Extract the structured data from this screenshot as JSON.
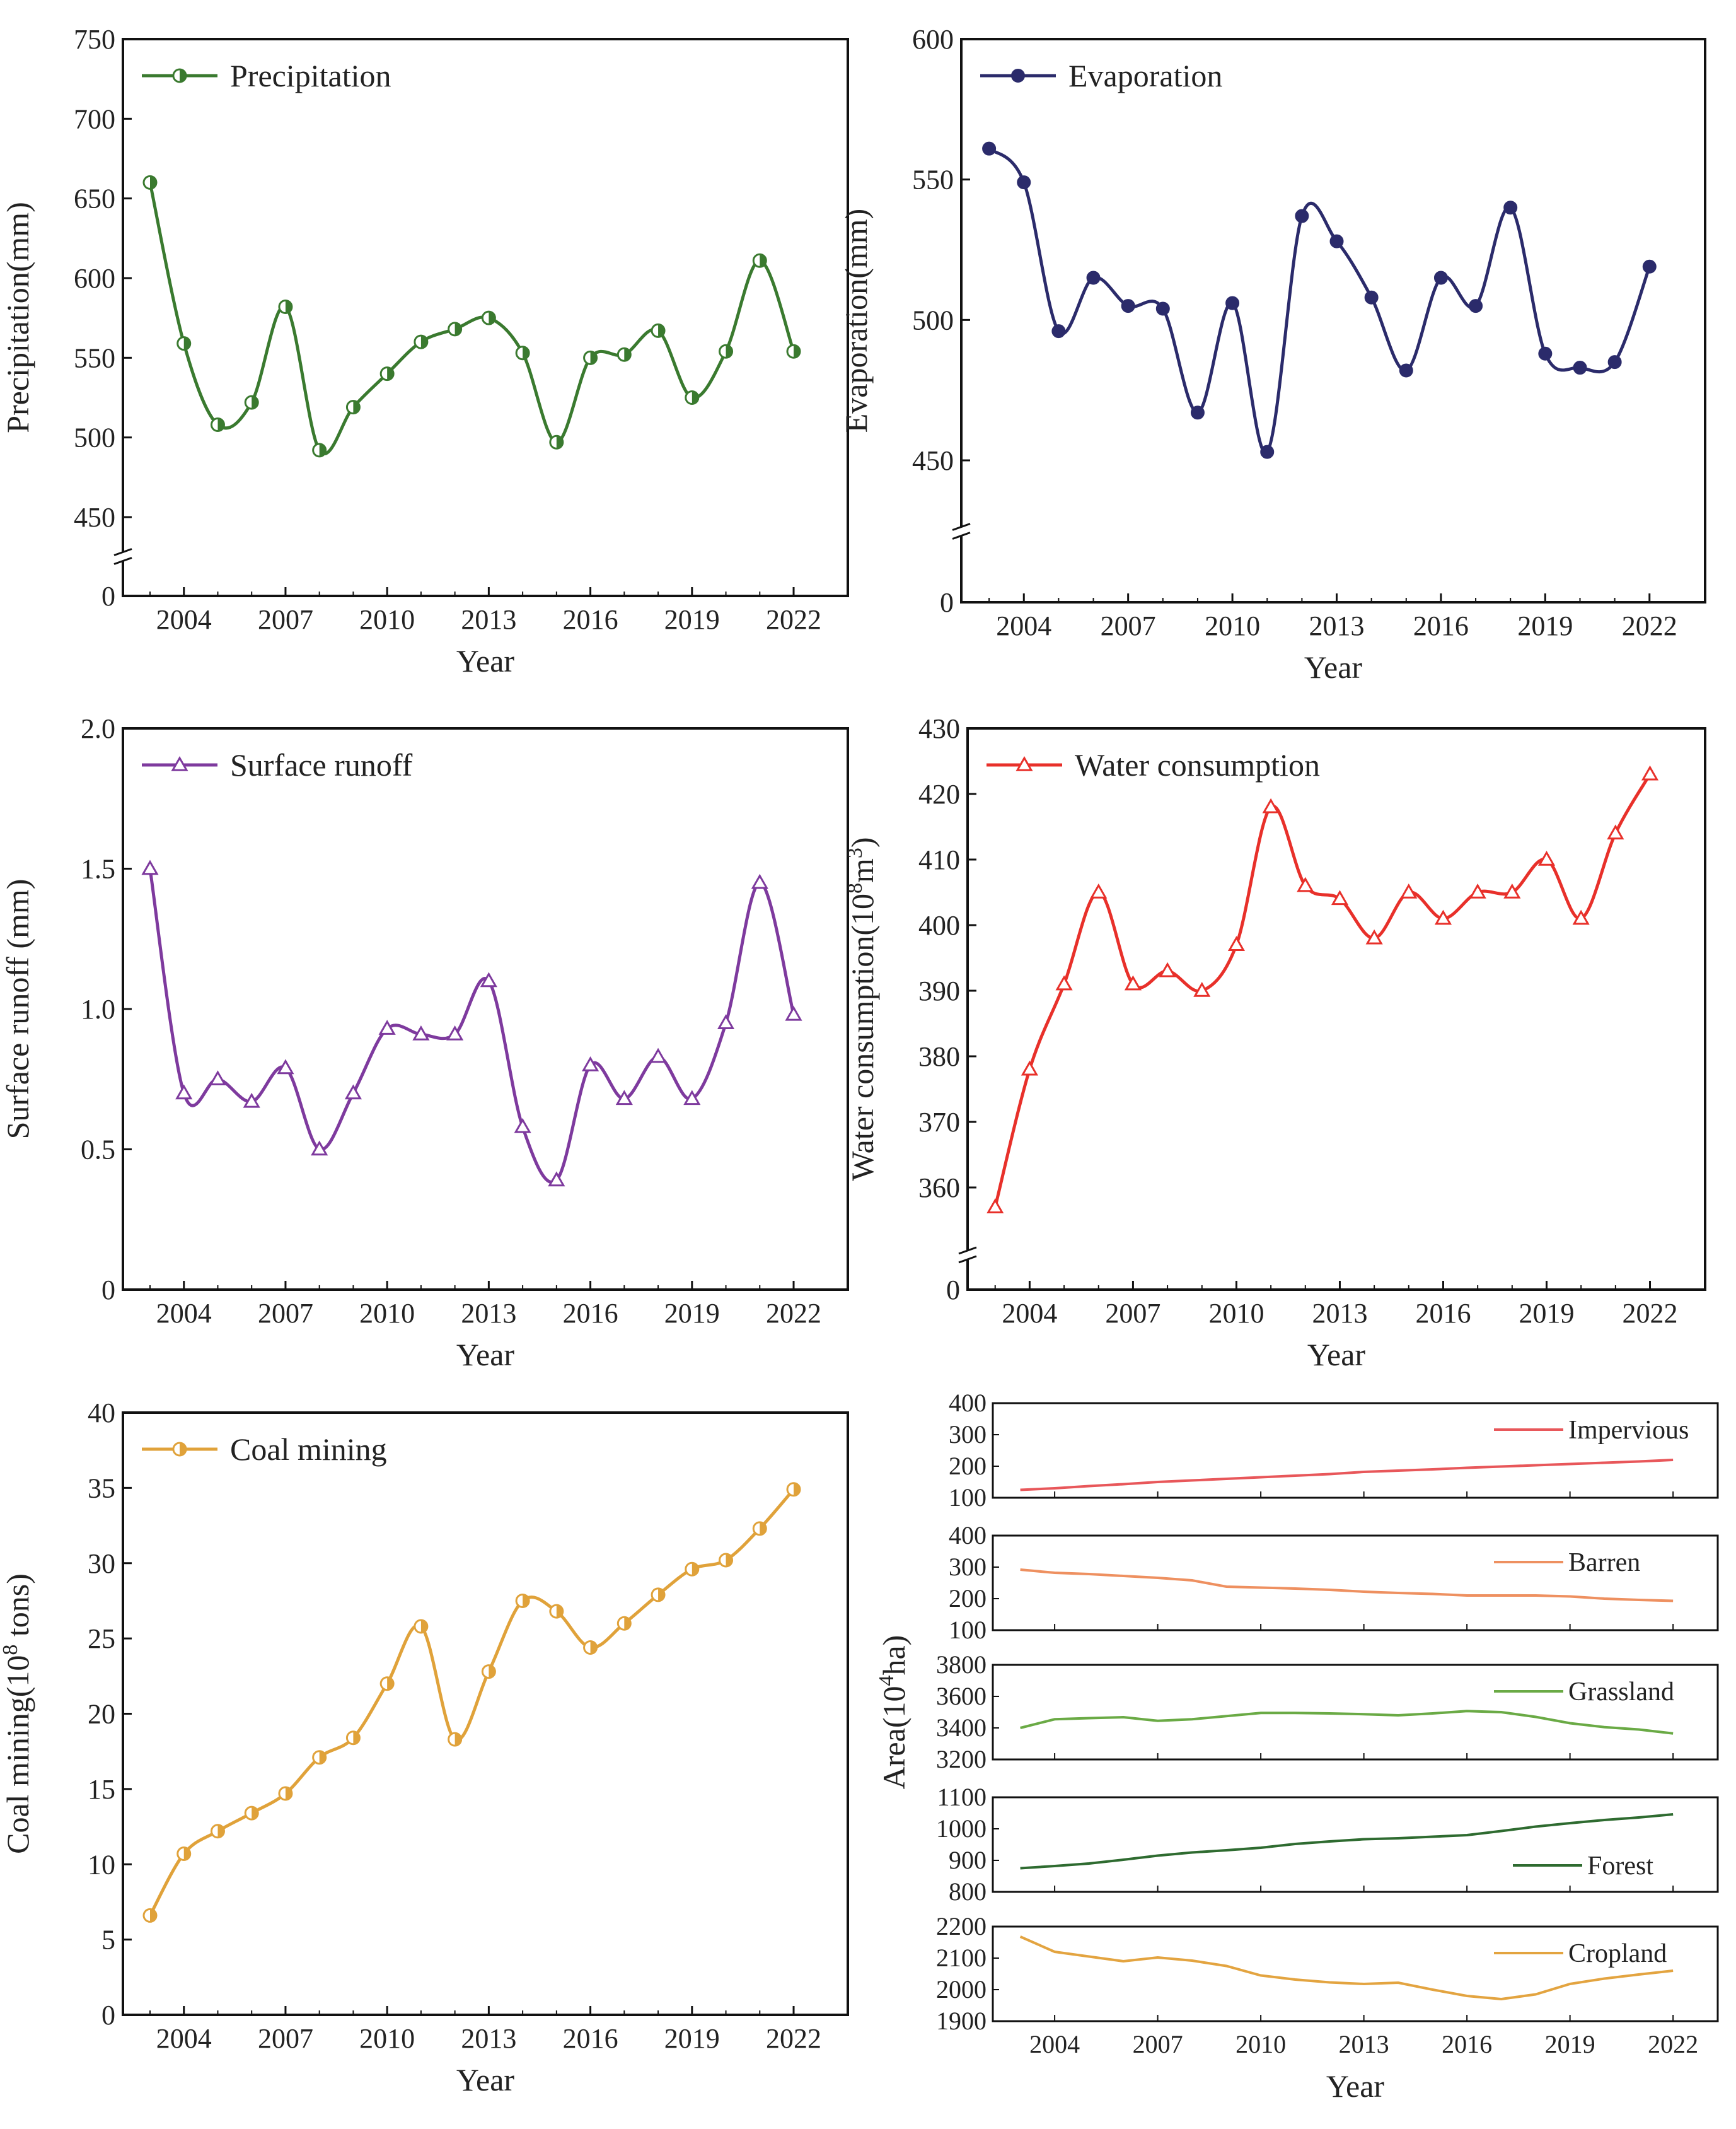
{
  "figure": {
    "title": ""
  },
  "chart_data": [
    {
      "id": "precip",
      "type": "line",
      "title": "",
      "xlabel": "Year",
      "ylabel": "Precipitation(mm)",
      "legend": "Precipitation",
      "color": "#3a7a2f",
      "marker": "circle-half",
      "axis_break": true,
      "ylim": [
        450,
        750
      ],
      "yticks": [
        "0",
        "450",
        "500",
        "550",
        "600",
        "650",
        "700",
        "750"
      ],
      "xticks": [
        "2004",
        "2007",
        "2010",
        "2013",
        "2016",
        "2019",
        "2022"
      ],
      "x": [
        2003,
        2004,
        2005,
        2006,
        2007,
        2008,
        2009,
        2010,
        2011,
        2012,
        2013,
        2014,
        2015,
        2016,
        2017,
        2018,
        2019,
        2020,
        2021,
        2022
      ],
      "values": [
        660,
        559,
        508,
        522,
        582,
        492,
        519,
        540,
        560,
        568,
        575,
        553,
        497,
        550,
        552,
        567,
        525,
        554,
        611,
        554
      ]
    },
    {
      "id": "evap",
      "type": "line",
      "title": "",
      "xlabel": "Year",
      "ylabel": "Evaporation(mm)",
      "legend": "Evaporation",
      "color": "#2b2b6b",
      "marker": "circle",
      "axis_break": true,
      "ylim": [
        450,
        600
      ],
      "yticks": [
        "0",
        "450",
        "500",
        "550",
        "600"
      ],
      "xticks": [
        "2004",
        "2007",
        "2010",
        "2013",
        "2016",
        "2019",
        "2022"
      ],
      "x": [
        2003,
        2004,
        2005,
        2006,
        2007,
        2008,
        2009,
        2010,
        2011,
        2012,
        2013,
        2014,
        2015,
        2016,
        2017,
        2018,
        2019,
        2020,
        2021,
        2022
      ],
      "values": [
        561,
        549,
        496,
        515,
        505,
        504,
        467,
        506,
        453,
        537,
        528,
        508,
        482,
        515,
        505,
        540,
        488,
        483,
        485,
        519
      ]
    },
    {
      "id": "runoff",
      "type": "line",
      "title": "",
      "xlabel": "Year",
      "ylabel": "Surface runoff (mm)",
      "legend": "Surface runoff",
      "color": "#7e3a9e",
      "marker": "triangle",
      "axis_break": false,
      "ylim": [
        0,
        2.0
      ],
      "yticks": [
        "0",
        "0.5",
        "1.0",
        "1.5",
        "2.0"
      ],
      "xticks": [
        "2004",
        "2007",
        "2010",
        "2013",
        "2016",
        "2019",
        "2022"
      ],
      "x": [
        2003,
        2004,
        2005,
        2006,
        2007,
        2008,
        2009,
        2010,
        2011,
        2012,
        2013,
        2014,
        2015,
        2016,
        2017,
        2018,
        2019,
        2020,
        2021,
        2022
      ],
      "values": [
        1.5,
        0.7,
        0.75,
        0.67,
        0.79,
        0.5,
        0.7,
        0.93,
        0.91,
        0.91,
        1.1,
        0.58,
        0.39,
        0.8,
        0.68,
        0.83,
        0.68,
        0.95,
        1.45,
        0.98
      ]
    },
    {
      "id": "water",
      "type": "line",
      "title": "",
      "xlabel": "Year",
      "ylabel_main": "Water consumption(10",
      "ylabel_sup1": "8",
      "ylabel_mid": "m",
      "ylabel_sup2": "3",
      "ylabel_end": ")",
      "legend": "Water consumption",
      "color": "#e8302a",
      "marker": "triangle",
      "axis_break": true,
      "ylim": [
        355,
        430
      ],
      "yticks": [
        "0",
        "360",
        "370",
        "380",
        "390",
        "400",
        "410",
        "420",
        "430"
      ],
      "xticks": [
        "2004",
        "2007",
        "2010",
        "2013",
        "2016",
        "2019",
        "2022"
      ],
      "x": [
        2003,
        2004,
        2005,
        2006,
        2007,
        2008,
        2009,
        2010,
        2011,
        2012,
        2013,
        2014,
        2015,
        2016,
        2017,
        2018,
        2019,
        2020,
        2021,
        2022
      ],
      "values": [
        357,
        378,
        391,
        405,
        391,
        393,
        390,
        397,
        418,
        406,
        404,
        398,
        405,
        401,
        405,
        405,
        410,
        401,
        414,
        423
      ]
    },
    {
      "id": "coal",
      "type": "line",
      "title": "",
      "xlabel": "Year",
      "ylabel_main": "Coal mining(10",
      "ylabel_sup1": "8",
      "ylabel_end": " tons)",
      "legend": "Coal mining",
      "color": "#e0a23a",
      "marker": "circle-half",
      "axis_break": false,
      "ylim": [
        0,
        40
      ],
      "yticks": [
        "0",
        "5",
        "10",
        "15",
        "20",
        "25",
        "30",
        "35",
        "40"
      ],
      "xticks": [
        "2004",
        "2007",
        "2010",
        "2013",
        "2016",
        "2019",
        "2022"
      ],
      "x": [
        2003,
        2004,
        2005,
        2006,
        2007,
        2008,
        2009,
        2010,
        2011,
        2012,
        2013,
        2014,
        2015,
        2016,
        2017,
        2018,
        2019,
        2020,
        2021,
        2022
      ],
      "values": [
        6.6,
        10.7,
        12.2,
        13.4,
        14.7,
        17.1,
        18.4,
        22.0,
        25.8,
        18.3,
        22.8,
        27.5,
        26.8,
        24.4,
        26.0,
        27.9,
        29.6,
        30.2,
        32.3,
        34.9
      ]
    },
    {
      "id": "landuse",
      "type": "line",
      "title": "",
      "xlabel": "Year",
      "ylabel_main": "Area(10",
      "ylabel_sup1": "4",
      "ylabel_end": "ha)",
      "xticks": [
        "2004",
        "2007",
        "2010",
        "2013",
        "2016",
        "2019",
        "2022"
      ],
      "x": [
        2003,
        2004,
        2005,
        2006,
        2007,
        2008,
        2009,
        2010,
        2011,
        2012,
        2013,
        2014,
        2015,
        2016,
        2017,
        2018,
        2019,
        2020,
        2021,
        2022
      ],
      "series": [
        {
          "name": "Impervious",
          "color": "#e8575a",
          "ylim": [
            100,
            400
          ],
          "yticks": [
            "100",
            "200",
            "300",
            "400"
          ],
          "values": [
            125,
            130,
            137,
            143,
            150,
            155,
            160,
            165,
            170,
            175,
            182,
            186,
            190,
            195,
            199,
            203,
            207,
            211,
            215,
            220
          ]
        },
        {
          "name": "Barren",
          "color": "#ee9060",
          "ylim": [
            100,
            400
          ],
          "yticks": [
            "100",
            "200",
            "300",
            "400"
          ],
          "values": [
            292,
            282,
            278,
            272,
            266,
            258,
            238,
            235,
            232,
            228,
            222,
            218,
            215,
            210,
            210,
            210,
            207,
            200,
            196,
            193
          ]
        },
        {
          "name": "Grassland",
          "color": "#6aaa45",
          "ylim": [
            3200,
            3800
          ],
          "yticks": [
            "3200",
            "3400",
            "3600",
            "3800"
          ],
          "values": [
            3400,
            3455,
            3462,
            3468,
            3445,
            3455,
            3475,
            3495,
            3495,
            3492,
            3487,
            3480,
            3492,
            3507,
            3500,
            3470,
            3430,
            3405,
            3390,
            3365
          ]
        },
        {
          "name": "Forest",
          "color": "#2e6b30",
          "ylim": [
            800,
            1100
          ],
          "yticks": [
            "800",
            "900",
            "1000",
            "1100"
          ],
          "values": [
            875,
            882,
            890,
            902,
            915,
            925,
            932,
            940,
            952,
            960,
            967,
            970,
            975,
            980,
            993,
            1007,
            1018,
            1028,
            1036,
            1046
          ]
        },
        {
          "name": "Cropland",
          "color": "#e3a440",
          "ylim": [
            1900,
            2200
          ],
          "yticks": [
            "1900",
            "2000",
            "2100",
            "2200"
          ],
          "values": [
            2168,
            2120,
            2105,
            2090,
            2102,
            2092,
            2075,
            2045,
            2032,
            2023,
            2018,
            2022,
            2000,
            1980,
            1970,
            1985,
            2018,
            2035,
            2048,
            2060
          ]
        }
      ]
    }
  ]
}
